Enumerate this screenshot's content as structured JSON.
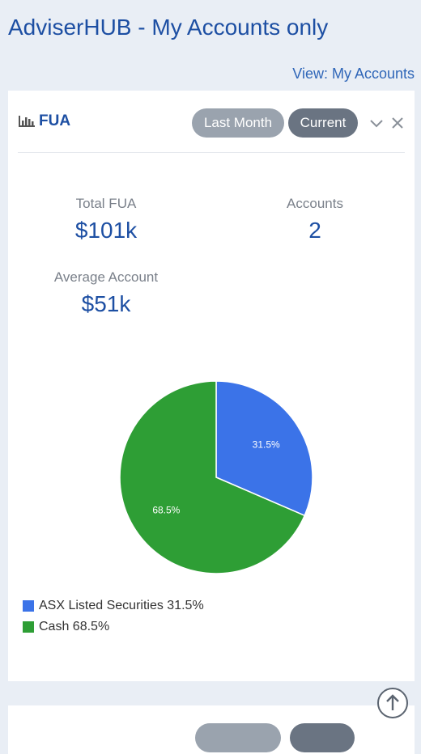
{
  "header": {
    "title": "AdviserHUB - My Accounts only",
    "view_label": "View: My Accounts"
  },
  "widget": {
    "title": "FUA",
    "icon": "bar-chart-icon",
    "pills": {
      "last_month": "Last Month",
      "current": "Current"
    },
    "stats": {
      "total_fua_label": "Total FUA",
      "total_fua_value": "$101k",
      "accounts_label": "Accounts",
      "accounts_value": "2",
      "average_label": "Average Account",
      "average_value": "$51k"
    },
    "legend": [
      {
        "label": "ASX Listed Securities 31.5%",
        "color": "#3b73e8"
      },
      {
        "label": "Cash 68.5%",
        "color": "#2e9e35"
      }
    ]
  },
  "chart_data": {
    "type": "pie",
    "categories": [
      "ASX Listed Securities",
      "Cash"
    ],
    "values": [
      31.5,
      68.5
    ],
    "labels": [
      "31.5%",
      "68.5%"
    ],
    "colors": [
      "#3b73e8",
      "#2e9e35"
    ]
  },
  "colors": {
    "background": "#e9eef5",
    "brand": "#1d4fa3",
    "pill_inactive": "#9aa3ae",
    "pill_active": "#6a7482"
  },
  "icons": {
    "chevron": "chevron-down-icon",
    "close": "close-icon",
    "scroll_top": "arrow-up-circle-icon"
  }
}
